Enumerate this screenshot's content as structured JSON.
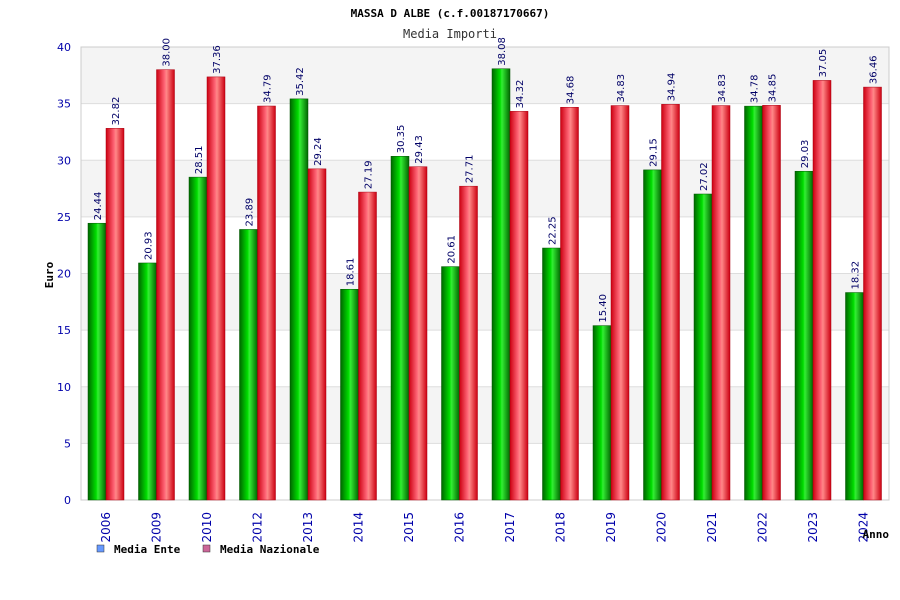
{
  "chart_data": {
    "type": "bar",
    "title": "MASSA D ALBE (c.f.00187170667)",
    "subtitle": "Media Importi",
    "xlabel": "Anno",
    "ylabel": "Euro",
    "ylim": [
      0,
      40
    ],
    "yticks": [
      0,
      5,
      10,
      15,
      20,
      25,
      30,
      35,
      40
    ],
    "grid": true,
    "legend_position": "bottom-left",
    "categories": [
      "2006",
      "2009",
      "2010",
      "2012",
      "2013",
      "2014",
      "2015",
      "2016",
      "2017",
      "2018",
      "2019",
      "2020",
      "2021",
      "2022",
      "2023",
      "2024"
    ],
    "series": [
      {
        "name": "Media Ente",
        "color": "#00cc00",
        "legend_color": "#6699ff",
        "values": [
          24.44,
          20.93,
          28.51,
          23.89,
          35.42,
          18.61,
          30.35,
          20.61,
          38.08,
          22.25,
          15.4,
          29.15,
          27.02,
          34.78,
          29.03,
          18.32
        ],
        "labels": [
          "24.44",
          "20.93",
          "28.51",
          "23.89",
          "35.42",
          "18.61",
          "30.35",
          "20.61",
          "38.08",
          "22.25",
          "15.40",
          "29.15",
          "27.02",
          "34.78",
          "29.03",
          "18.32"
        ]
      },
      {
        "name": "Media Nazionale",
        "color": "#ee1122",
        "legend_color": "#cc6699",
        "values": [
          32.82,
          38.0,
          37.36,
          34.79,
          29.24,
          27.19,
          29.43,
          27.71,
          34.32,
          34.68,
          34.83,
          34.94,
          34.83,
          34.85,
          37.05,
          36.46
        ],
        "labels": [
          "32.82",
          "38.00",
          "37.36",
          "34.79",
          "29.24",
          "27.19",
          "29.43",
          "27.71",
          "34.32",
          "34.68",
          "34.83",
          "34.94",
          "34.83",
          "34.85",
          "37.05",
          "36.46"
        ]
      }
    ]
  }
}
